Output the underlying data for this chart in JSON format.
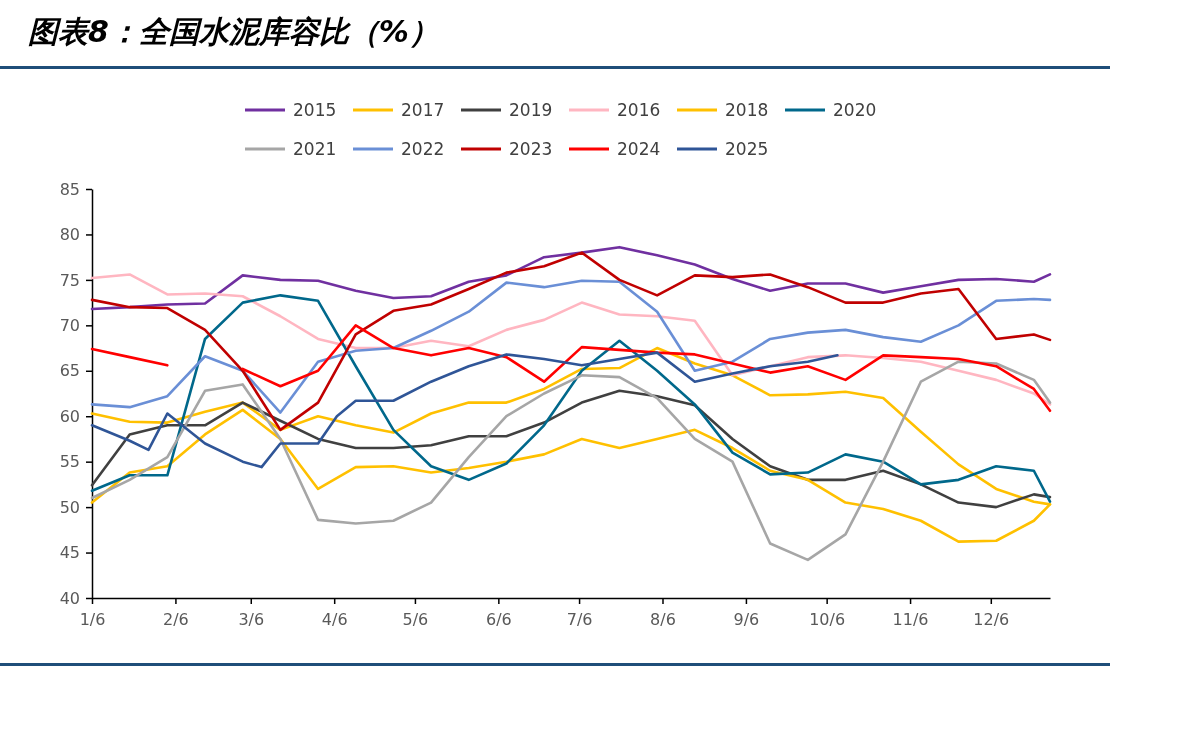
{
  "chart_data": {
    "type": "line",
    "title": "图表8：全国水泥库容比（%）",
    "x": [
      "--01-06",
      "--01-20",
      "--02-03",
      "--02-17",
      "--03-03",
      "--03-17",
      "--03-31",
      "--04-14",
      "--04-28",
      "--05-12",
      "--05-26",
      "--06-09",
      "--06-23",
      "--07-07",
      "--07-21",
      "--08-04",
      "--08-18",
      "--09-01",
      "--09-15",
      "--09-29",
      "--10-13",
      "--10-27",
      "--11-10",
      "--11-24",
      "--12-08",
      "--12-22",
      "--12-28"
    ],
    "series": [
      {
        "name": "2015",
        "color": "#7030a0",
        "values": [
          71.8,
          72.0,
          72.3,
          72.4,
          75.5,
          75.0,
          74.9,
          73.8,
          73.0,
          73.2,
          74.8,
          75.5,
          77.5,
          78.0,
          78.6,
          77.7,
          76.7,
          75.1,
          73.8,
          74.6,
          74.6,
          73.6,
          74.3,
          75.0,
          75.1,
          74.8,
          75.6
        ]
      },
      {
        "name": "2017",
        "color": "#ffc000",
        "values": [
          60.3,
          59.4,
          59.3,
          60.5,
          61.5,
          58.5,
          60.0,
          59.0,
          58.2,
          60.3,
          61.5,
          61.5,
          63.0,
          65.2,
          65.3,
          67.5,
          65.8,
          64.5,
          62.3,
          62.4,
          62.7,
          62.0,
          58.3,
          54.7,
          52.0,
          50.6,
          50.3
        ]
      },
      {
        "name": "2019",
        "color": "#404040",
        "values": [
          52.4,
          58.0,
          59.0,
          59.0,
          61.5,
          59.5,
          57.5,
          56.5,
          56.5,
          56.8,
          57.8,
          57.8,
          59.3,
          61.5,
          62.8,
          62.2,
          61.2,
          57.5,
          54.5,
          53.0,
          53.0,
          54.0,
          52.5,
          50.5,
          50.0,
          51.4,
          51.1
        ]
      },
      {
        "name": "2016",
        "color": "#ffb6c1",
        "values": [
          75.2,
          75.6,
          73.4,
          73.5,
          73.2,
          71.0,
          68.5,
          67.5,
          67.5,
          68.3,
          67.7,
          69.5,
          70.6,
          72.5,
          71.2,
          71.0,
          70.5,
          64.5,
          65.5,
          66.5,
          66.7,
          66.4,
          66.0,
          65.0,
          64.0,
          62.5,
          61.3
        ]
      },
      {
        "name": "2018",
        "color": "#ffc000",
        "values": [
          50.5,
          53.8,
          54.5,
          58.0,
          60.7,
          57.5,
          52.0,
          54.4,
          54.5,
          53.8,
          54.3,
          55.0,
          55.8,
          57.5,
          56.5,
          57.5,
          58.5,
          56.5,
          54.0,
          53.0,
          50.5,
          49.8,
          48.5,
          46.2,
          46.3,
          48.5,
          50.3
        ]
      },
      {
        "name": "2020",
        "color": "#00688b",
        "values": [
          51.8,
          53.5,
          53.5,
          68.5,
          72.5,
          73.3,
          72.7,
          65.5,
          58.5,
          54.5,
          53.0,
          54.8,
          59.0,
          65.0,
          68.3,
          65.0,
          61.3,
          56.0,
          53.6,
          53.8,
          55.8,
          55.0,
          52.5,
          53.0,
          54.5,
          54.0,
          50.6
        ]
      },
      {
        "name": "2021",
        "color": "#a6a6a6",
        "values": [
          51.0,
          53.0,
          55.5,
          62.8,
          63.5,
          57.5,
          48.6,
          48.2,
          48.5,
          50.5,
          55.5,
          60.0,
          62.5,
          64.5,
          64.3,
          62.0,
          57.5,
          55.0,
          46.0,
          44.2,
          47.0,
          55.0,
          63.8,
          66.0,
          65.8,
          64.0,
          61.5
        ]
      },
      {
        "name": "2022",
        "color": "#6a8fd6",
        "values": [
          61.3,
          61.0,
          62.2,
          66.6,
          65.0,
          60.4,
          66.0,
          67.2,
          67.5,
          69.4,
          71.5,
          74.7,
          74.2,
          74.9,
          74.8,
          71.5,
          65.0,
          66.0,
          68.5,
          69.2,
          69.5,
          68.7,
          68.2,
          70.0,
          72.7,
          72.9,
          72.8
        ]
      },
      {
        "name": "2023",
        "color": "#c00000",
        "values": [
          72.8,
          72.0,
          71.9,
          69.5,
          65.0,
          58.5,
          61.5,
          69.0,
          71.6,
          72.3,
          74.0,
          75.8,
          76.5,
          78.0,
          75.0,
          73.3,
          75.5,
          75.3,
          75.6,
          74.2,
          72.5,
          72.5,
          73.5,
          74.0,
          68.5,
          69.0,
          68.4
        ]
      },
      {
        "name": "2024",
        "color": "#ff0000",
        "values": [
          67.4,
          66.5,
          65.6,
          null,
          65.2,
          63.3,
          65.0,
          70.0,
          67.5,
          66.7,
          67.5,
          66.5,
          63.8,
          67.6,
          67.3,
          67.0,
          66.8,
          65.8,
          64.8,
          65.5,
          64.0,
          66.7,
          66.5,
          66.3,
          65.5,
          63.0,
          60.6
        ]
      },
      {
        "name": "2025",
        "color": "#2f5597",
        "x": [
          "--01-06",
          "--01-20",
          "--01-27",
          "--02-03",
          "--02-17",
          "--03-03",
          "--03-10",
          "--03-17",
          "--03-31",
          "--04-07",
          "--04-14",
          "--04-28",
          "--05-12",
          "--05-26",
          "--06-09",
          "--06-23",
          "--07-07",
          "--07-21",
          "--08-04",
          "--08-18",
          "--09-01",
          "--09-15",
          "--09-29",
          "--10-10"
        ],
        "values": [
          59.0,
          57.3,
          56.3,
          60.3,
          57.0,
          55.0,
          54.4,
          57.0,
          57.0,
          60.0,
          61.7,
          61.7,
          63.8,
          65.5,
          66.8,
          66.3,
          65.6,
          66.3,
          67.0,
          63.8,
          64.7,
          65.5,
          66.0,
          66.7
        ]
      }
    ],
    "xlim": [
      "--01-06",
      "--12-28"
    ],
    "xticks": [
      {
        "value": "--01-06",
        "label": "1/6"
      },
      {
        "value": "--02-06",
        "label": "2/6"
      },
      {
        "value": "--03-06",
        "label": "3/6"
      },
      {
        "value": "--04-06",
        "label": "4/6"
      },
      {
        "value": "--05-06",
        "label": "5/6"
      },
      {
        "value": "--06-06",
        "label": "6/6"
      },
      {
        "value": "--07-06",
        "label": "7/6"
      },
      {
        "value": "--08-06",
        "label": "8/6"
      },
      {
        "value": "--09-06",
        "label": "9/6"
      },
      {
        "value": "--10-06",
        "label": "10/6"
      },
      {
        "value": "--11-06",
        "label": "11/6"
      },
      {
        "value": "--12-06",
        "label": "12/6"
      }
    ],
    "ylim": [
      40,
      85
    ],
    "yticks": [
      40,
      45,
      50,
      55,
      60,
      65,
      70,
      75,
      80,
      85
    ],
    "legend": "top",
    "grid": false,
    "marker": "none",
    "line_style": "solid"
  }
}
